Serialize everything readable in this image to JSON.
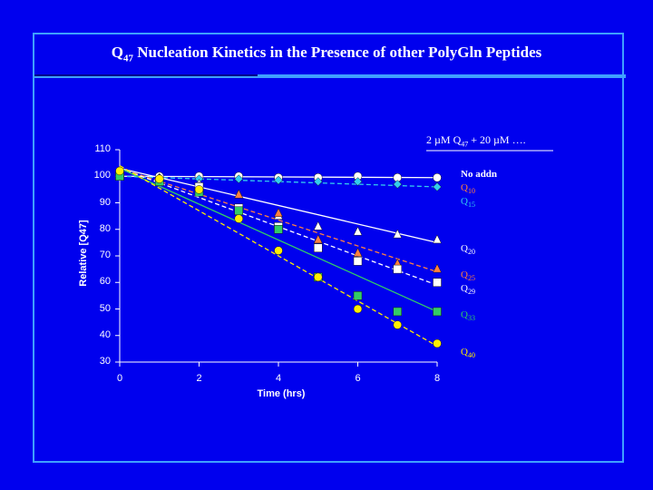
{
  "slide": {
    "title_main": "Q",
    "title_sub": "47",
    "title_rest": " Nucleation Kinetics in the Presence of other PolyGln Peptides"
  },
  "colors": {
    "background": "#0000ee",
    "frame": "#3fa0ff",
    "white": "#ffffff",
    "cyan": "#33ccee",
    "orange": "#ff8040",
    "green": "#33cc66",
    "yellow": "#ffee00"
  },
  "chart_data": {
    "type": "scatter",
    "annotation": "2 µM Q47 + 20 µM ….",
    "annotation_parts": [
      "2 µM Q",
      "47",
      " + 20 µM …."
    ],
    "xlabel": "Time (hrs)",
    "ylabel": "Relative [Q47]",
    "xlim": [
      0,
      8
    ],
    "ylim": [
      30,
      110
    ],
    "x_ticks": [
      0,
      2,
      4,
      6,
      8
    ],
    "y_ticks": [
      30,
      40,
      50,
      60,
      70,
      80,
      90,
      100,
      110
    ],
    "legend_placement": "right",
    "series": [
      {
        "name": "No addn",
        "label_parts": [
          "No addn",
          ""
        ],
        "color": "#ffffff",
        "marker": "circle",
        "x": [
          0,
          1,
          2,
          3,
          4,
          5,
          6,
          7,
          8
        ],
        "y": [
          101,
          100,
          100,
          100,
          99.5,
          99.5,
          100,
          99.5,
          99.5
        ],
        "fit": [
          [
            0,
            100
          ],
          [
            8,
            99.5
          ]
        ],
        "fit_style": "solid",
        "label_y": 100
      },
      {
        "name": "Q10",
        "label_parts": [
          "Q",
          "10"
        ],
        "color": "#ff8040",
        "marker": "none",
        "x": [],
        "y": [],
        "fit": [],
        "fit_style": "solid",
        "label_y": 95
      },
      {
        "name": "Q15",
        "label_parts": [
          "Q",
          "15"
        ],
        "color": "#33ccee",
        "marker": "diamond",
        "x": [
          0,
          1,
          2,
          3,
          4,
          5,
          6,
          7,
          8
        ],
        "y": [
          101,
          99.5,
          99,
          99,
          98.5,
          98,
          98,
          97,
          96
        ],
        "fit": [
          [
            0,
            100
          ],
          [
            8,
            96
          ]
        ],
        "fit_style": "dashed",
        "label_y": 90
      },
      {
        "name": "Q20",
        "label_parts": [
          "Q",
          "20"
        ],
        "color": "#ffffff",
        "marker": "triangle",
        "x": [
          0,
          1,
          2,
          3,
          4,
          5,
          6,
          7,
          8
        ],
        "y": [
          101,
          99,
          97,
          93,
          85,
          81,
          79,
          78,
          76
        ],
        "fit": [
          [
            0,
            103
          ],
          [
            8,
            75
          ]
        ],
        "fit_style": "solid",
        "label_y": 72
      },
      {
        "name": "Q25",
        "label_parts": [
          "Q",
          "25"
        ],
        "color": "#ff8040",
        "marker": "triangle",
        "x": [
          0,
          1,
          2,
          3,
          4,
          5,
          6,
          7,
          8
        ],
        "y": [
          101,
          99,
          96,
          93,
          86,
          76,
          71,
          67,
          65
        ],
        "fit": [
          [
            0,
            103
          ],
          [
            8,
            64
          ]
        ],
        "fit_style": "dashed",
        "label_y": 62
      },
      {
        "name": "Q29",
        "label_parts": [
          "Q",
          "29"
        ],
        "color": "#ffffff",
        "marker": "square",
        "x": [
          0,
          1,
          2,
          3,
          4,
          5,
          6,
          7,
          8
        ],
        "y": [
          100,
          98,
          96,
          88,
          81,
          73,
          68,
          65,
          60
        ],
        "fit": [
          [
            0,
            103
          ],
          [
            8,
            59
          ]
        ],
        "fit_style": "dashed",
        "label_y": 57
      },
      {
        "name": "Q33",
        "label_parts": [
          "Q",
          "33"
        ],
        "color": "#33cc66",
        "marker": "square",
        "x": [
          0,
          1,
          2,
          3,
          4,
          5,
          6,
          7,
          8
        ],
        "y": [
          100,
          98,
          94,
          87,
          80,
          62,
          55,
          49,
          49
        ],
        "fit": [
          [
            0,
            103
          ],
          [
            8,
            49
          ]
        ],
        "fit_style": "solid",
        "label_y": 47
      },
      {
        "name": "Q40",
        "label_parts": [
          "Q",
          "40"
        ],
        "color": "#ffee00",
        "marker": "circle",
        "x": [
          0,
          1,
          2,
          3,
          4,
          5,
          6,
          7,
          8
        ],
        "y": [
          102,
          99,
          95,
          84,
          72,
          62,
          50,
          44,
          37
        ],
        "fit": [
          [
            0,
            104
          ],
          [
            8,
            36
          ]
        ],
        "fit_style": "dashed",
        "label_y": 33
      }
    ]
  }
}
